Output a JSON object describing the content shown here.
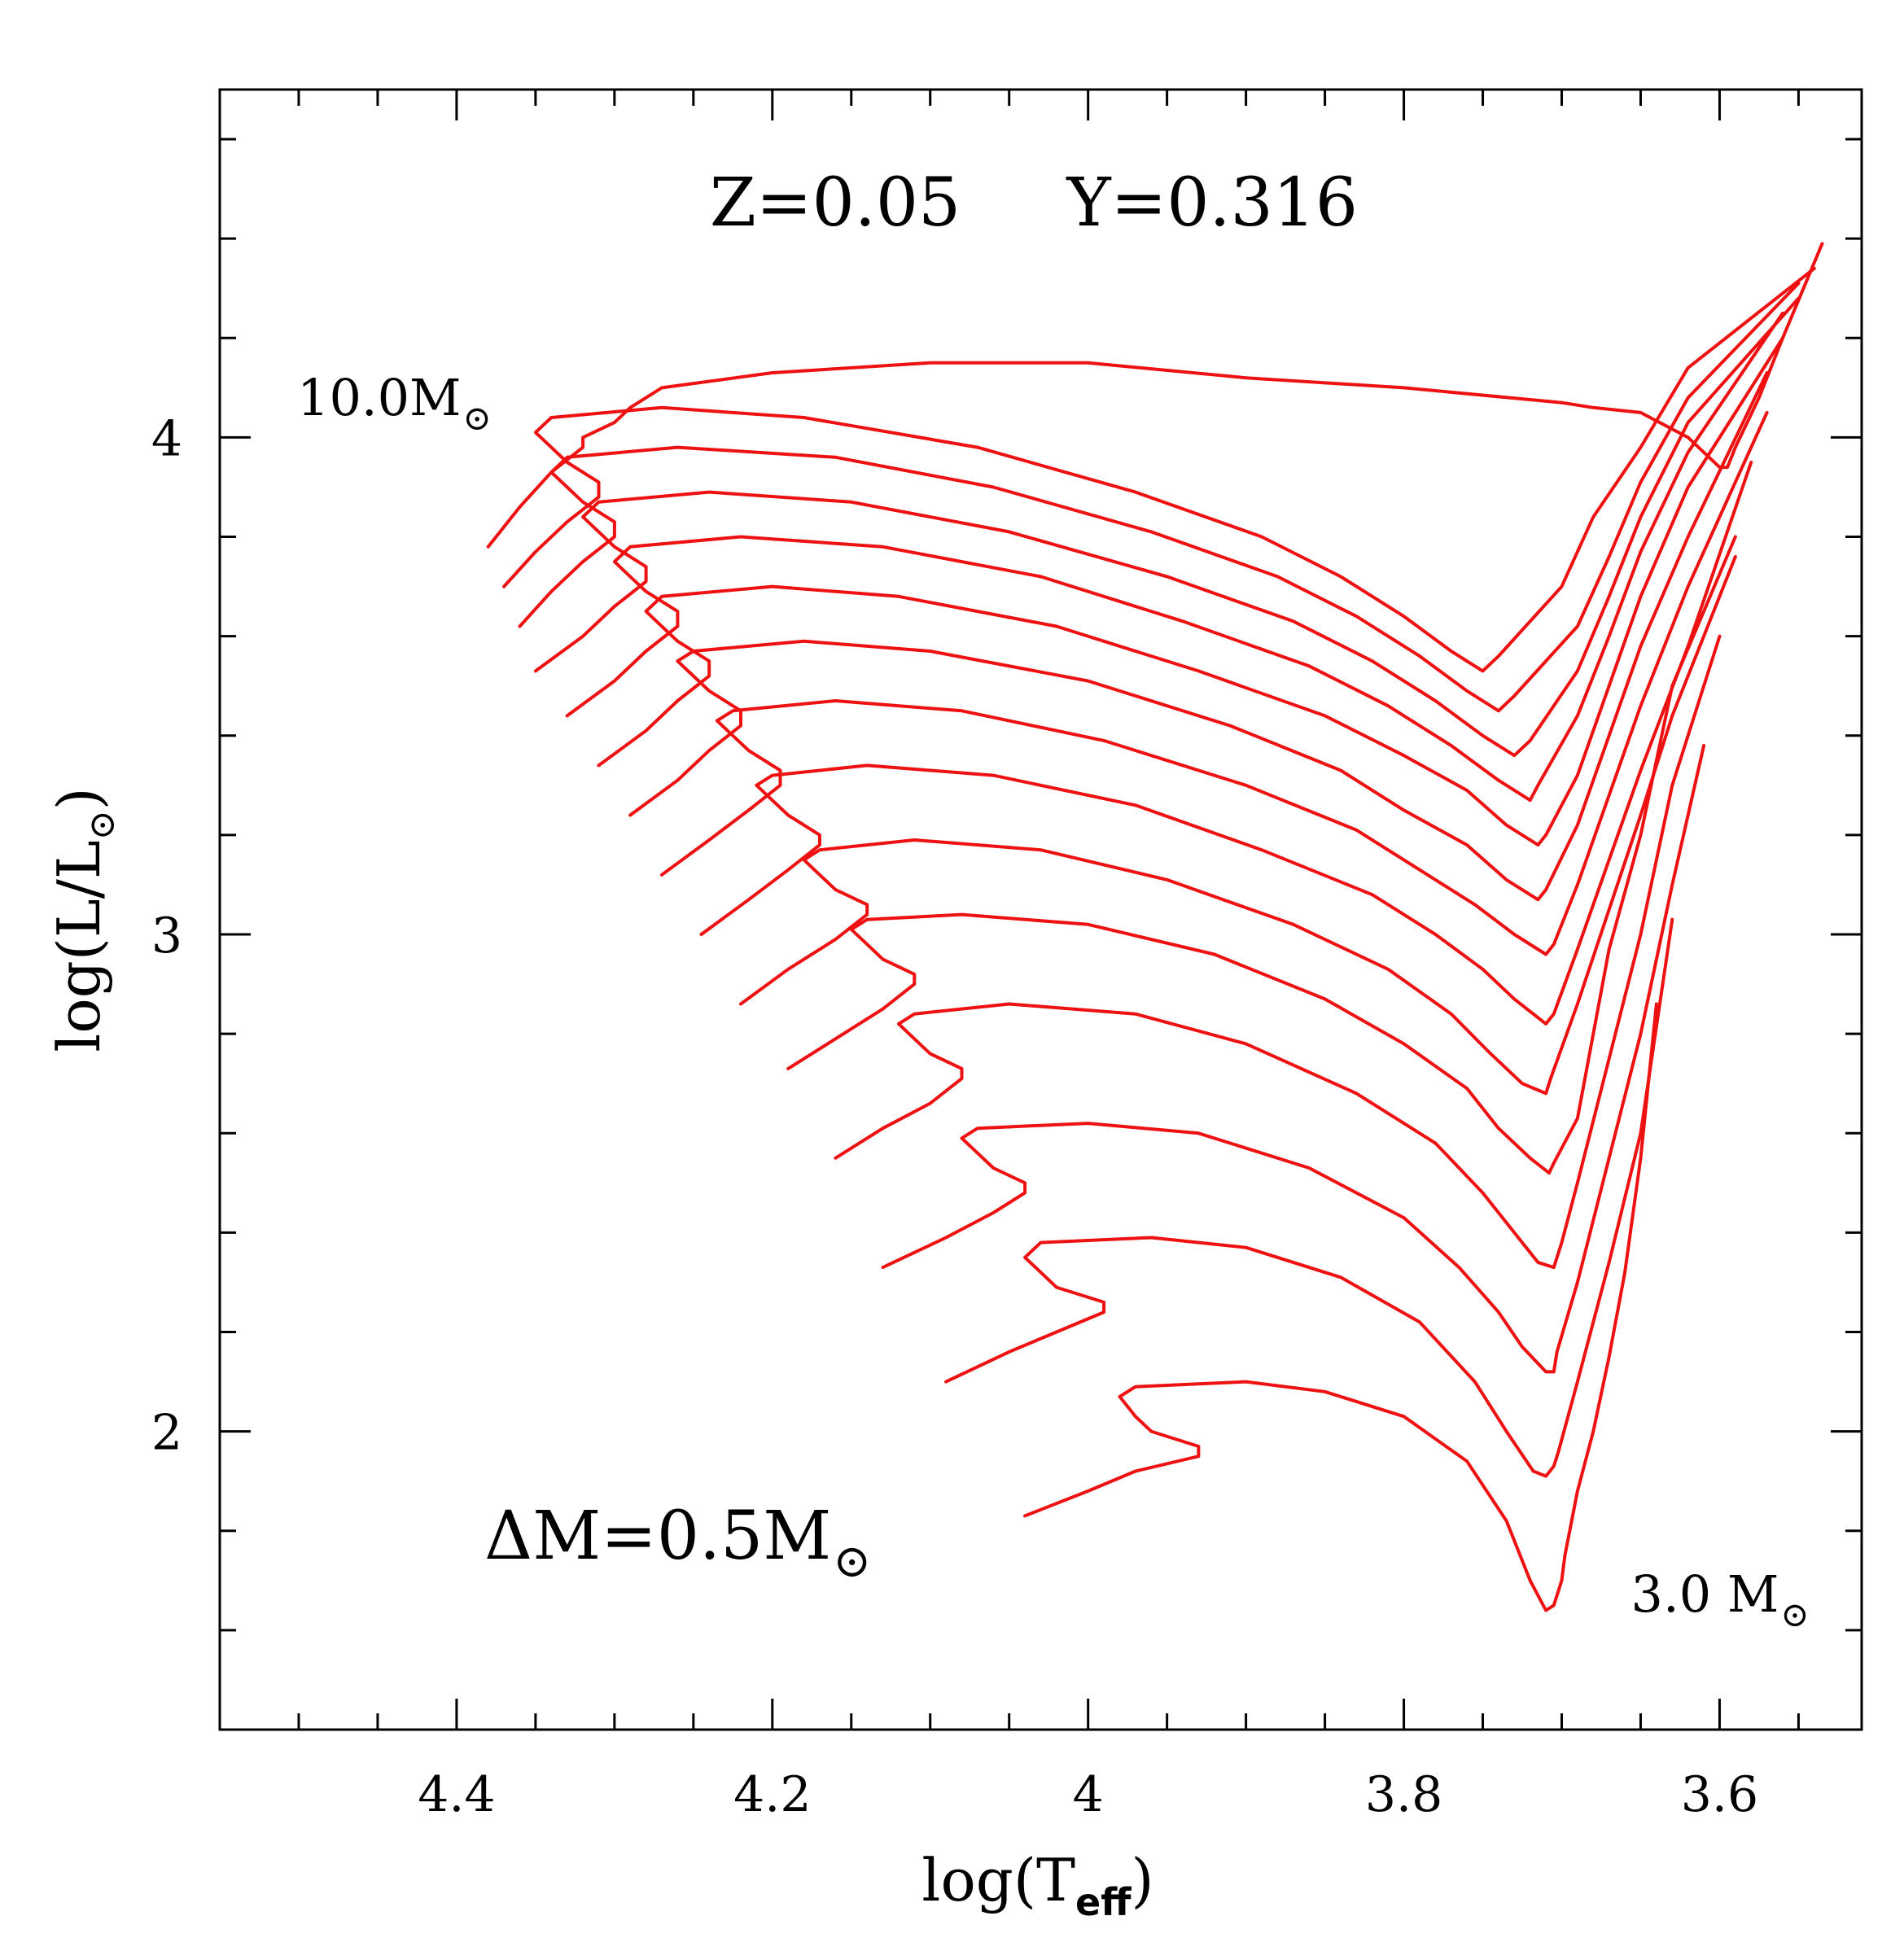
{
  "chart_data": {
    "type": "line",
    "title": "",
    "xlabel": "log(T",
    "xlabel_sub": "eff",
    "xlabel_close": ")",
    "ylabel": "log(L/L",
    "ylabel_sub": "⊙",
    "ylabel_close": ")",
    "xlim": [
      4.55,
      3.51
    ],
    "ylim": [
      1.4,
      4.7
    ],
    "x_ticks": [
      4.4,
      4.2,
      4.0,
      3.8,
      3.6
    ],
    "x_tick_labels": [
      "4.4",
      "4.2",
      "4",
      "3.8",
      "3.6"
    ],
    "y_ticks": [
      2,
      3,
      4
    ],
    "y_tick_labels": [
      "2",
      "3",
      "4"
    ],
    "grid": false,
    "line_color": "#ee1111",
    "annotations": {
      "composition": "Z=0.05     Y=0.316",
      "top_mass": "10.0M",
      "bottom_mass": "3.0 M",
      "mass_step": "ΔM=0.5M",
      "solar_symbol": "⊙"
    },
    "series": [
      {
        "name": "3.0 Msun",
        "mass": 3.0,
        "x": [
          4.04,
          4.0,
          3.97,
          3.93,
          3.93,
          3.96,
          3.97,
          3.98,
          3.97,
          3.9,
          3.85,
          3.8,
          3.76,
          3.735,
          3.72,
          3.71,
          3.705,
          3.7,
          3.698,
          3.69,
          3.68,
          3.67,
          3.66,
          3.65,
          3.64
        ],
        "y": [
          1.83,
          1.88,
          1.92,
          1.95,
          1.97,
          2.0,
          2.03,
          2.07,
          2.09,
          2.1,
          2.08,
          2.03,
          1.94,
          1.82,
          1.7,
          1.64,
          1.65,
          1.7,
          1.75,
          1.88,
          2.0,
          2.15,
          2.32,
          2.55,
          2.86
        ]
      },
      {
        "name": "3.5 Msun",
        "mass": 3.5,
        "x": [
          4.09,
          4.05,
          4.02,
          3.99,
          3.99,
          4.02,
          4.03,
          4.04,
          4.03,
          3.96,
          3.9,
          3.84,
          3.79,
          3.755,
          3.735,
          3.718,
          3.71,
          3.705,
          3.702,
          3.69,
          3.67,
          3.65,
          3.63
        ],
        "y": [
          2.1,
          2.16,
          2.2,
          2.24,
          2.26,
          2.29,
          2.32,
          2.35,
          2.38,
          2.39,
          2.37,
          2.31,
          2.22,
          2.1,
          2.0,
          1.92,
          1.91,
          1.93,
          1.96,
          2.1,
          2.34,
          2.6,
          3.03
        ]
      },
      {
        "name": "4.0 Msun",
        "mass": 4.0,
        "x": [
          4.13,
          4.09,
          4.06,
          4.04,
          4.04,
          4.06,
          4.07,
          4.08,
          4.07,
          4.0,
          3.93,
          3.86,
          3.8,
          3.765,
          3.74,
          3.725,
          3.71,
          3.705,
          3.703,
          3.69,
          3.67,
          3.65,
          3.63,
          3.61
        ],
        "y": [
          2.33,
          2.39,
          2.44,
          2.48,
          2.5,
          2.53,
          2.56,
          2.59,
          2.61,
          2.62,
          2.6,
          2.53,
          2.43,
          2.33,
          2.24,
          2.17,
          2.12,
          2.12,
          2.16,
          2.3,
          2.55,
          2.8,
          3.1,
          3.38
        ]
      },
      {
        "name": "4.5 Msun",
        "mass": 4.5,
        "x": [
          4.16,
          4.13,
          4.1,
          4.08,
          4.08,
          4.1,
          4.11,
          4.12,
          4.11,
          4.05,
          3.97,
          3.9,
          3.83,
          3.78,
          3.75,
          3.73,
          3.715,
          3.705,
          3.7,
          3.69,
          3.67,
          3.65,
          3.63,
          3.6
        ],
        "y": [
          2.55,
          2.61,
          2.66,
          2.71,
          2.73,
          2.76,
          2.79,
          2.82,
          2.84,
          2.86,
          2.84,
          2.78,
          2.68,
          2.58,
          2.48,
          2.4,
          2.34,
          2.33,
          2.38,
          2.5,
          2.75,
          3.0,
          3.3,
          3.6
        ]
      },
      {
        "name": "5.0 Msun",
        "mass": 5.0,
        "x": [
          4.19,
          4.16,
          4.13,
          4.11,
          4.11,
          4.13,
          4.14,
          4.15,
          4.14,
          4.08,
          4.0,
          3.92,
          3.85,
          3.8,
          3.76,
          3.74,
          3.72,
          3.708,
          3.705,
          3.69,
          3.68,
          3.67,
          3.65,
          3.63,
          3.59
        ],
        "y": [
          2.73,
          2.79,
          2.85,
          2.9,
          2.92,
          2.95,
          2.98,
          3.01,
          3.03,
          3.04,
          3.02,
          2.96,
          2.87,
          2.78,
          2.69,
          2.61,
          2.55,
          2.52,
          2.54,
          2.63,
          2.8,
          2.97,
          3.2,
          3.5,
          3.8
        ]
      },
      {
        "name": "5.5 Msun",
        "mass": 5.5,
        "x": [
          4.22,
          4.19,
          4.16,
          4.14,
          4.14,
          4.16,
          4.17,
          4.18,
          4.17,
          4.11,
          4.03,
          3.95,
          3.87,
          3.81,
          3.77,
          3.745,
          3.725,
          3.71,
          3.707,
          3.69,
          3.67,
          3.65,
          3.63,
          3.59
        ],
        "y": [
          2.86,
          2.93,
          2.99,
          3.04,
          3.06,
          3.09,
          3.12,
          3.15,
          3.17,
          3.19,
          3.17,
          3.11,
          3.02,
          2.93,
          2.84,
          2.76,
          2.7,
          2.68,
          2.71,
          2.86,
          3.05,
          3.24,
          3.44,
          3.76
        ]
      },
      {
        "name": "6.0 Msun",
        "mass": 6.0,
        "x": [
          4.245,
          4.215,
          4.19,
          4.17,
          4.17,
          4.19,
          4.2,
          4.21,
          4.2,
          4.14,
          4.06,
          3.97,
          3.89,
          3.82,
          3.78,
          3.75,
          3.73,
          3.71,
          3.705,
          3.69,
          3.67,
          3.65,
          3.62,
          3.58
        ],
        "y": [
          3.0,
          3.07,
          3.13,
          3.18,
          3.2,
          3.24,
          3.27,
          3.3,
          3.32,
          3.34,
          3.32,
          3.26,
          3.17,
          3.08,
          3.0,
          2.93,
          2.87,
          2.82,
          2.84,
          2.97,
          3.15,
          3.33,
          3.58,
          3.95
        ]
      },
      {
        "name": "6.5 Msun",
        "mass": 6.5,
        "x": [
          4.27,
          4.24,
          4.215,
          4.195,
          4.195,
          4.215,
          4.225,
          4.235,
          4.225,
          4.16,
          4.08,
          3.99,
          3.9,
          3.83,
          3.79,
          3.755,
          3.73,
          3.71,
          3.705,
          3.69,
          3.67,
          3.65,
          3.62,
          3.57
        ],
        "y": [
          3.12,
          3.19,
          3.25,
          3.3,
          3.33,
          3.37,
          3.4,
          3.43,
          3.45,
          3.47,
          3.45,
          3.39,
          3.3,
          3.21,
          3.13,
          3.06,
          3.0,
          2.96,
          2.98,
          3.1,
          3.28,
          3.46,
          3.7,
          4.05
        ]
      },
      {
        "name": "7.0 Msun",
        "mass": 7.0,
        "x": [
          4.29,
          4.26,
          4.24,
          4.22,
          4.22,
          4.24,
          4.25,
          4.26,
          4.25,
          4.18,
          4.1,
          4.0,
          3.91,
          3.84,
          3.8,
          3.76,
          3.735,
          3.715,
          3.71,
          3.69,
          3.67,
          3.65,
          3.62,
          3.57
        ],
        "y": [
          3.24,
          3.31,
          3.37,
          3.42,
          3.45,
          3.49,
          3.52,
          3.55,
          3.57,
          3.59,
          3.57,
          3.51,
          3.42,
          3.33,
          3.25,
          3.18,
          3.11,
          3.07,
          3.09,
          3.22,
          3.4,
          3.58,
          3.8,
          4.13
        ]
      },
      {
        "name": "7.5 Msun",
        "mass": 7.5,
        "x": [
          4.31,
          4.28,
          4.26,
          4.24,
          4.24,
          4.26,
          4.27,
          4.28,
          4.27,
          4.2,
          4.12,
          4.02,
          3.93,
          3.85,
          3.8,
          3.76,
          3.735,
          3.715,
          3.71,
          3.69,
          3.67,
          3.65,
          3.62,
          3.56
        ],
        "y": [
          3.34,
          3.41,
          3.47,
          3.52,
          3.55,
          3.59,
          3.62,
          3.65,
          3.68,
          3.7,
          3.68,
          3.62,
          3.53,
          3.44,
          3.36,
          3.29,
          3.22,
          3.18,
          3.2,
          3.32,
          3.5,
          3.68,
          3.9,
          4.2
        ]
      },
      {
        "name": "8.0 Msun",
        "mass": 8.0,
        "x": [
          4.33,
          4.3,
          4.28,
          4.26,
          4.26,
          4.28,
          4.29,
          4.3,
          4.29,
          4.22,
          4.13,
          4.03,
          3.94,
          3.86,
          3.81,
          3.77,
          3.74,
          3.72,
          3.715,
          3.69,
          3.67,
          3.65,
          3.62,
          3.56
        ],
        "y": [
          3.44,
          3.51,
          3.57,
          3.62,
          3.65,
          3.69,
          3.72,
          3.75,
          3.78,
          3.8,
          3.78,
          3.72,
          3.63,
          3.54,
          3.46,
          3.38,
          3.31,
          3.27,
          3.3,
          3.44,
          3.6,
          3.77,
          3.97,
          4.25
        ]
      },
      {
        "name": "8.5 Msun",
        "mass": 8.5,
        "x": [
          4.35,
          4.32,
          4.3,
          4.28,
          4.28,
          4.3,
          4.31,
          4.32,
          4.31,
          4.24,
          4.15,
          4.05,
          3.95,
          3.87,
          3.82,
          3.78,
          3.75,
          3.73,
          3.72,
          3.69,
          3.67,
          3.65,
          3.62,
          3.55
        ],
        "y": [
          3.53,
          3.6,
          3.66,
          3.71,
          3.74,
          3.78,
          3.81,
          3.84,
          3.87,
          3.89,
          3.87,
          3.81,
          3.72,
          3.63,
          3.55,
          3.47,
          3.4,
          3.36,
          3.39,
          3.53,
          3.68,
          3.84,
          4.03,
          4.28
        ]
      },
      {
        "name": "9.0 Msun",
        "mass": 9.0,
        "x": [
          4.36,
          4.34,
          4.32,
          4.3,
          4.3,
          4.32,
          4.33,
          4.34,
          4.33,
          4.26,
          4.16,
          4.06,
          3.96,
          3.88,
          3.83,
          3.79,
          3.76,
          3.74,
          3.73,
          3.69,
          3.67,
          3.65,
          3.62,
          3.55
        ],
        "y": [
          3.62,
          3.69,
          3.75,
          3.8,
          3.83,
          3.87,
          3.9,
          3.93,
          3.96,
          3.98,
          3.96,
          3.9,
          3.81,
          3.72,
          3.64,
          3.56,
          3.49,
          3.45,
          3.48,
          3.62,
          3.76,
          3.91,
          4.08,
          4.31
        ]
      },
      {
        "name": "9.5 Msun",
        "mass": 9.5,
        "x": [
          4.37,
          4.35,
          4.33,
          4.31,
          4.31,
          4.33,
          4.34,
          4.35,
          4.34,
          4.27,
          4.18,
          4.07,
          3.97,
          3.89,
          3.84,
          3.8,
          3.77,
          3.75,
          3.74,
          3.7,
          3.68,
          3.65,
          3.62,
          3.54
        ],
        "y": [
          3.7,
          3.77,
          3.83,
          3.88,
          3.91,
          3.95,
          3.98,
          4.01,
          4.04,
          4.06,
          4.04,
          3.98,
          3.89,
          3.8,
          3.72,
          3.64,
          3.57,
          3.53,
          3.56,
          3.7,
          3.84,
          3.98,
          4.14,
          4.34
        ]
      },
      {
        "name": "10.0 Msun",
        "mass": 10.0,
        "x": [
          4.38,
          4.36,
          4.34,
          4.32,
          4.32,
          4.3,
          4.29,
          4.27,
          4.2,
          4.1,
          4.0,
          3.9,
          3.8,
          3.7,
          3.68,
          3.65,
          3.62,
          3.6,
          3.595,
          3.59,
          3.575,
          3.56,
          3.535
        ],
        "y": [
          3.78,
          3.86,
          3.93,
          3.98,
          4.0,
          4.03,
          4.06,
          4.1,
          4.13,
          4.15,
          4.15,
          4.12,
          4.1,
          4.07,
          4.06,
          4.05,
          4.0,
          3.94,
          3.94,
          3.98,
          4.08,
          4.2,
          4.39
        ]
      }
    ]
  }
}
